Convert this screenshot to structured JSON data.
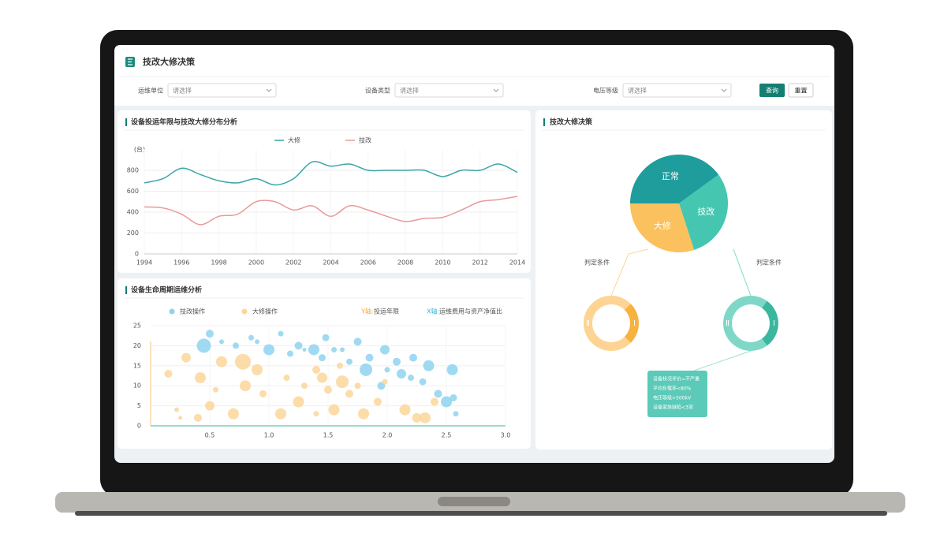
{
  "header": {
    "title": "技改大修决策"
  },
  "filters": [
    {
      "label": "运维单位",
      "placeholder": "请选择"
    },
    {
      "label": "设备类型",
      "placeholder": "请选择"
    },
    {
      "label": "电压等级",
      "placeholder": "请选择"
    }
  ],
  "buttons": [
    "查询",
    "重置"
  ],
  "decision": {
    "conditions": [
      "判定条件",
      "判定条件"
    ],
    "tooltip": [
      "设备状况评价=不严重",
      "平均负载率<80%",
      "电压等级>500kV",
      "设备家族缺陷<3项"
    ]
  },
  "chart_data": [
    {
      "type": "line",
      "title": "设备投运年限与技改大修分布分析",
      "y_unit": "(台)",
      "x": [
        1994,
        1995,
        1996,
        1997,
        1998,
        1999,
        2000,
        2001,
        2002,
        2003,
        2004,
        2005,
        2006,
        2007,
        2008,
        2009,
        2010,
        2011,
        2012,
        2013,
        2014
      ],
      "series": [
        {
          "name": "大修",
          "color": "#3aa5a5",
          "values": [
            680,
            720,
            820,
            760,
            700,
            680,
            720,
            660,
            720,
            880,
            840,
            860,
            800,
            800,
            800,
            800,
            740,
            800,
            800,
            860,
            780
          ]
        },
        {
          "name": "技改",
          "color": "#e89a98",
          "values": [
            450,
            440,
            380,
            280,
            360,
            380,
            500,
            500,
            420,
            460,
            360,
            460,
            420,
            360,
            310,
            340,
            350,
            420,
            500,
            520,
            550
          ]
        }
      ],
      "xlim": [
        1994,
        2014
      ],
      "xticks": [
        1994,
        1996,
        1998,
        2000,
        2002,
        2004,
        2006,
        2008,
        2010,
        2012,
        2014
      ],
      "ylim": [
        0,
        1000
      ],
      "yticks": [
        0,
        200,
        400,
        600,
        800
      ],
      "grid": true
    },
    {
      "type": "scatter",
      "title": "设备生命周期运维分析",
      "x_label_key": "X轴:",
      "x_label": "运维费用与资产净值比",
      "y_label_key": "Y轴:",
      "y_label": "投运年限",
      "series": [
        {
          "name": "技改操作",
          "color": "#8fd3f0",
          "x": [
            0.45,
            0.5,
            0.6,
            0.72,
            0.85,
            0.9,
            1.0,
            1.1,
            1.18,
            1.25,
            1.3,
            1.38,
            1.48,
            1.45,
            1.55,
            1.62,
            1.68,
            1.75,
            1.82,
            1.85,
            1.98,
            2.08,
            2.12,
            2.2,
            2.22,
            2.3,
            2.35,
            2.43,
            2.5,
            2.55,
            2.58,
            2.56,
            1.95,
            2.0
          ],
          "values": [
            20,
            23,
            21,
            20,
            22,
            21,
            19,
            23,
            18,
            20,
            19,
            19,
            22,
            17,
            19,
            19,
            16,
            21,
            14,
            17,
            19,
            16,
            13,
            12,
            17,
            11,
            15,
            8,
            6,
            14,
            3,
            7,
            10,
            14
          ],
          "sizes": [
            18,
            10,
            6,
            8,
            7,
            6,
            14,
            7,
            8,
            10,
            5,
            14,
            9,
            9,
            7,
            6,
            8,
            10,
            16,
            10,
            12,
            10,
            12,
            8,
            10,
            9,
            14,
            10,
            14,
            14,
            7,
            9,
            10,
            7
          ]
        },
        {
          "name": "大修操作",
          "color": "#fcd69a",
          "x": [
            0.15,
            0.22,
            0.25,
            0.3,
            0.4,
            0.42,
            0.5,
            0.55,
            0.6,
            0.7,
            0.78,
            0.8,
            0.9,
            0.95,
            1.1,
            1.15,
            1.25,
            1.3,
            1.4,
            1.4,
            1.5,
            1.55,
            1.6,
            1.68,
            1.75,
            1.8,
            1.92,
            1.98,
            2.15,
            2.25,
            2.32,
            2.4,
            1.45,
            1.62
          ],
          "values": [
            13,
            4,
            2,
            17,
            2,
            12,
            5,
            9,
            16,
            3,
            16,
            10,
            14,
            8,
            3,
            12,
            6,
            10,
            14,
            3,
            9,
            4,
            15,
            8,
            10,
            3,
            6,
            11,
            4,
            2,
            2,
            6,
            12,
            11
          ],
          "sizes": [
            10,
            6,
            5,
            12,
            10,
            14,
            12,
            7,
            14,
            14,
            20,
            14,
            14,
            9,
            14,
            8,
            14,
            8,
            10,
            7,
            10,
            14,
            8,
            10,
            8,
            14,
            10,
            7,
            14,
            12,
            14,
            10,
            13,
            16
          ]
        }
      ],
      "xlim": [
        0,
        3
      ],
      "xticks": [
        {
          "value": 0.5,
          "label": "0.5"
        },
        {
          "value": 1,
          "label": "1.0"
        },
        {
          "value": 1.5,
          "label": "1.5"
        },
        {
          "value": 2,
          "label": "2.0"
        },
        {
          "value": 2.5,
          "label": "2.5"
        },
        {
          "value": 3,
          "label": "3.0"
        }
      ],
      "ylim": [
        0,
        25
      ],
      "yticks": [
        0,
        5,
        10,
        15,
        20,
        25
      ],
      "grid": true
    },
    {
      "type": "pie",
      "title": "技改大修决策",
      "categories": [
        "正常",
        "技改",
        "大修"
      ],
      "values": [
        40,
        30,
        30
      ],
      "colors": [
        "#1f9c9c",
        "#45c6b0",
        "#fbc15e"
      ]
    },
    {
      "type": "donut",
      "categories": [
        "Ⅱ",
        "Ⅰ"
      ],
      "values": [
        75,
        25
      ],
      "colors": [
        "#fdd493",
        "#f7b23f"
      ]
    },
    {
      "type": "donut",
      "categories": [
        "Ⅱ",
        "Ⅰ"
      ],
      "values": [
        70,
        30
      ],
      "colors": [
        "#7fd8c7",
        "#3bb79f"
      ]
    }
  ]
}
